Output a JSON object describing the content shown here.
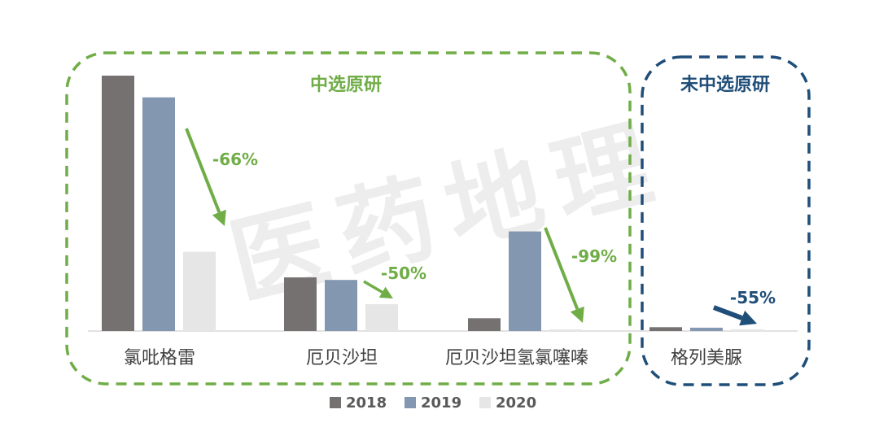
{
  "chart_data": {
    "type": "bar",
    "categories": [
      "氯吡格雷",
      "厄贝沙坦",
      "厄贝沙坦氢氯噻嗪",
      "格列美脲"
    ],
    "series": [
      {
        "name": "2018",
        "values": [
          100,
          21,
          5,
          1.5
        ],
        "color": "#767171"
      },
      {
        "name": "2019",
        "values": [
          91.5,
          20,
          39,
          1.3
        ],
        "color": "#8497B0"
      },
      {
        "name": "2020",
        "values": [
          31,
          10.5,
          0.4,
          0.7
        ],
        "color": "#E7E6E6"
      }
    ],
    "groups": [
      {
        "label": "中选原研",
        "color": "#70AD47",
        "categories": [
          "氯吡格雷",
          "厄贝沙坦",
          "厄贝沙坦氢氯噻嗪"
        ]
      },
      {
        "label": "未中选原研",
        "color": "#1F4E79",
        "categories": [
          "格列美脲"
        ]
      }
    ],
    "annotations": [
      {
        "category": "氯吡格雷",
        "text": "-66%",
        "color": "#70AD47"
      },
      {
        "category": "厄贝沙坦",
        "text": "-50%",
        "color": "#70AD47"
      },
      {
        "category": "厄贝沙坦氢氯噻嗪",
        "text": "-99%",
        "color": "#70AD47"
      },
      {
        "category": "格列美脲",
        "text": "-55%",
        "color": "#1F4E79"
      }
    ],
    "legend_position": "bottom",
    "grid": false,
    "watermark": "医药地理"
  }
}
